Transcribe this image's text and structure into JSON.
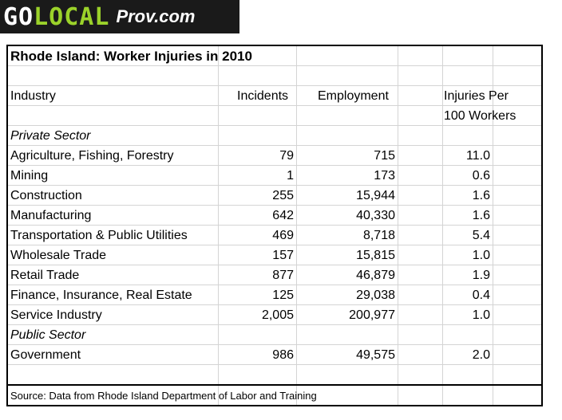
{
  "logo": {
    "go": "GO",
    "local": "LOCAL",
    "site": "Prov.com"
  },
  "table": {
    "title": "Rhode Island: Worker Injuries in 2010",
    "headers": {
      "industry": "Industry",
      "incidents": "Incidents",
      "employment": "Employment",
      "rate_line1": "Injuries Per",
      "rate_line2": "100 Workers"
    },
    "private_sector_label": "Private Sector",
    "public_sector_label": "Public Sector",
    "rows": [
      {
        "industry": "Agriculture, Fishing, Forestry",
        "incidents": "79",
        "employment": "715",
        "rate": "11.0"
      },
      {
        "industry": "Mining",
        "incidents": "1",
        "employment": "173",
        "rate": "0.6"
      },
      {
        "industry": "Construction",
        "incidents": "255",
        "employment": "15,944",
        "rate": "1.6"
      },
      {
        "industry": "Manufacturing",
        "incidents": "642",
        "employment": "40,330",
        "rate": "1.6"
      },
      {
        "industry": "Transportation & Public Utilities",
        "incidents": "469",
        "employment": "8,718",
        "rate": "5.4"
      },
      {
        "industry": "Wholesale Trade",
        "incidents": "157",
        "employment": "15,815",
        "rate": "1.0"
      },
      {
        "industry": "Retail Trade",
        "incidents": "877",
        "employment": "46,879",
        "rate": "1.9"
      },
      {
        "industry": "Finance, Insurance, Real Estate",
        "incidents": "125",
        "employment": "29,038",
        "rate": "0.4"
      },
      {
        "industry": "Service Industry",
        "incidents": "2,005",
        "employment": "200,977",
        "rate": "1.0"
      },
      {
        "industry": "Government",
        "incidents": "986",
        "employment": "49,575",
        "rate": "2.0"
      }
    ],
    "source": "Source: Data from Rhode Island Department of Labor and Training"
  }
}
